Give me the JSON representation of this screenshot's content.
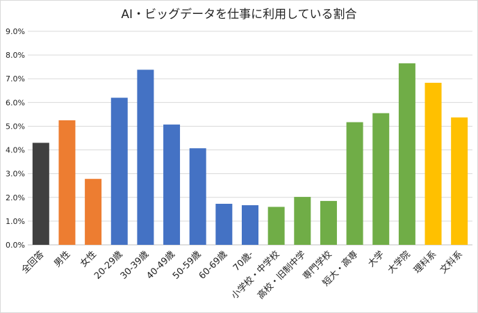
{
  "chart_data": {
    "type": "bar",
    "title": "AI・ビッグデータを仕事に利用している割合",
    "xlabel": "",
    "ylabel": "",
    "ylim": [
      0,
      9
    ],
    "y_ticks": [
      0,
      1,
      2,
      3,
      4,
      5,
      6,
      7,
      8,
      9
    ],
    "y_tick_suffix": "%",
    "grid": true,
    "categories": [
      "全回答",
      "男性",
      "女性",
      "20-29歳",
      "30-39歳",
      "40-49歳",
      "50-59歳",
      "60-69歳",
      "70歳-",
      "小学校・中学校",
      "高校・旧制中学",
      "専門学校",
      "短大・高専",
      "大学",
      "大学院",
      "理科系",
      "文科系"
    ],
    "values": [
      4.3,
      5.25,
      2.78,
      6.2,
      7.38,
      5.07,
      4.07,
      1.73,
      1.67,
      1.6,
      2.02,
      1.85,
      5.17,
      5.55,
      7.65,
      6.83,
      5.37
    ],
    "groups": [
      "total",
      "gender",
      "gender",
      "age",
      "age",
      "age",
      "age",
      "age",
      "age",
      "education",
      "education",
      "education",
      "education",
      "education",
      "education",
      "major",
      "major"
    ],
    "group_colors": {
      "total": "#404040",
      "gender": "#ed7d31",
      "age": "#4472c4",
      "education": "#70ad47",
      "major": "#ffc000"
    }
  }
}
